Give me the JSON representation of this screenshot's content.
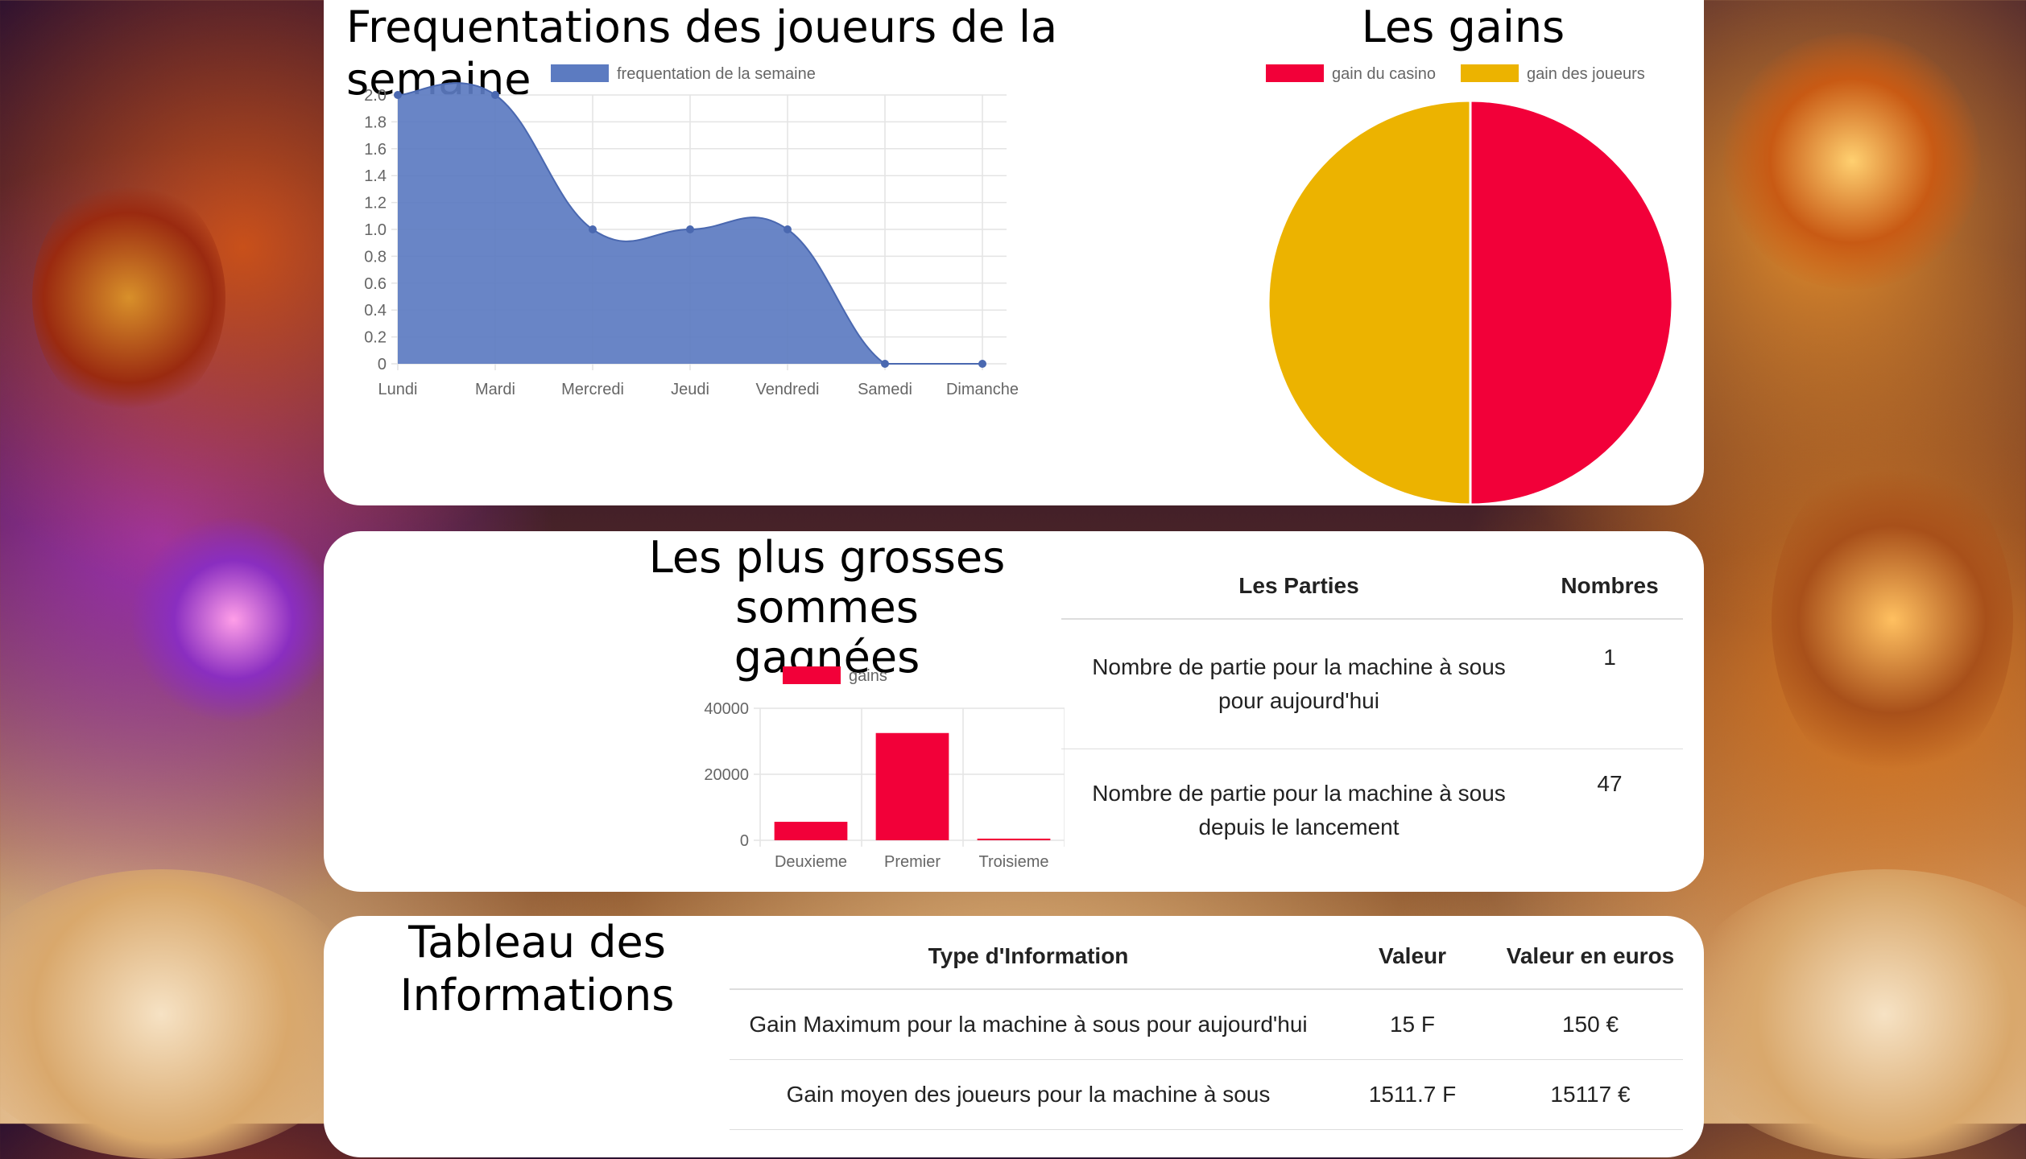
{
  "weekly_chart": {
    "title": "Frequentations des joueurs de la semaine",
    "chart_data": {
      "type": "area",
      "legend_position": "top",
      "categories": [
        "Lundi",
        "Mardi",
        "Mercredi",
        "Jeudi",
        "Vendredi",
        "Samedi",
        "Dimanche"
      ],
      "series": [
        {
          "name": "frequentation de la semaine",
          "values": [
            2,
            2,
            1,
            1,
            1,
            0,
            0
          ],
          "color": "#5c7bc1"
        }
      ],
      "ylim": [
        0,
        2
      ],
      "yticks": [
        "0",
        "0.2",
        "0.4",
        "0.6",
        "0.8",
        "1.0",
        "1.2",
        "1.4",
        "1.6",
        "1.8",
        "2.0"
      ],
      "grid": true
    }
  },
  "gains_chart": {
    "title": "Les gains",
    "chart_data": {
      "type": "pie",
      "legend_position": "top",
      "labels": [
        "gain du casino",
        "gain des joueurs"
      ],
      "values": [
        50,
        50
      ],
      "colors": [
        "#f20039",
        "#ecb300"
      ]
    }
  },
  "top_wins_chart": {
    "title": "Les plus grosses sommes gagnées",
    "chart_data": {
      "type": "bar",
      "legend_position": "top",
      "categories": [
        "Deuxieme",
        "Premier",
        "Troisieme"
      ],
      "series": [
        {
          "name": "gains",
          "values": [
            5600,
            32500,
            500
          ],
          "color": "#f20039"
        }
      ],
      "ylim": [
        0,
        40000
      ],
      "yticks": [
        "0",
        "20000",
        "40000"
      ],
      "grid": true
    }
  },
  "parties_table": {
    "headers": [
      "Les Parties",
      "Nombres"
    ],
    "rows": [
      {
        "line1": "Nombre de partie pour la machine à sous",
        "line2": "pour aujourd'hui",
        "value": "1"
      },
      {
        "line1": "Nombre de partie pour la machine à sous",
        "line2": "depuis le lancement",
        "value": "47"
      }
    ]
  },
  "info_section": {
    "title_line1": "Tableau des",
    "title_line2": "Informations",
    "headers": [
      "Type d'Information",
      "Valeur",
      "Valeur en euros"
    ],
    "rows": [
      {
        "type": "Gain Maximum pour la machine à sous pour aujourd'hui",
        "value": "15 F",
        "euros": "150 €"
      },
      {
        "type": "Gain moyen des joueurs pour la machine à sous",
        "value": "1511.7 F",
        "euros": "15117 €"
      }
    ]
  }
}
